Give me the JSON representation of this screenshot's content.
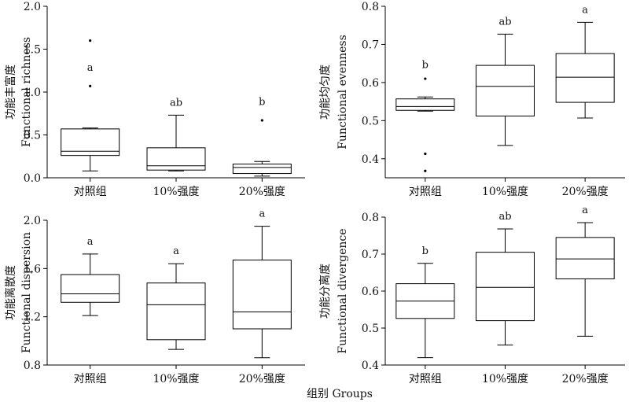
{
  "figure": {
    "xlabel": "组别 Groups"
  },
  "chart_data": [
    {
      "type": "box",
      "ylabel_cn": "功能丰富度",
      "ylabel_en": "Functional richness",
      "ylim": [
        0,
        2.0
      ],
      "yticks": [
        "0.0",
        "0.5",
        "1.0",
        "1.5",
        "2.0"
      ],
      "categories": [
        "对照组",
        "10%强度",
        "20%强度"
      ],
      "boxes": [
        {
          "min": 0.08,
          "q1": 0.26,
          "median": 0.31,
          "q3": 0.57,
          "max": 0.58,
          "outliers": [
            1.07,
            1.6
          ],
          "sig": "a"
        },
        {
          "min": 0.08,
          "q1": 0.09,
          "median": 0.14,
          "q3": 0.35,
          "max": 0.73,
          "outliers": [],
          "sig": "ab"
        },
        {
          "min": 0.02,
          "q1": 0.05,
          "median": 0.12,
          "q3": 0.16,
          "max": 0.19,
          "outliers": [
            0.67
          ],
          "sig": "b"
        }
      ]
    },
    {
      "type": "box",
      "ylabel_cn": "功能均匀度",
      "ylabel_en": "Functional evenness",
      "ylim": [
        0.35,
        0.8
      ],
      "yticks": [
        "0.4",
        "0.5",
        "0.6",
        "0.7",
        "0.8"
      ],
      "categories": [
        "对照组",
        "10%强度",
        "20%强度"
      ],
      "boxes": [
        {
          "min": 0.525,
          "q1": 0.527,
          "median": 0.537,
          "q3": 0.557,
          "max": 0.562,
          "outliers": [
            0.61,
            0.413,
            0.368
          ],
          "sig": "b"
        },
        {
          "min": 0.435,
          "q1": 0.512,
          "median": 0.59,
          "q3": 0.645,
          "max": 0.727,
          "outliers": [],
          "sig": "ab"
        },
        {
          "min": 0.507,
          "q1": 0.548,
          "median": 0.614,
          "q3": 0.676,
          "max": 0.758,
          "outliers": [],
          "sig": "a"
        }
      ]
    },
    {
      "type": "box",
      "ylabel_cn": "功能离散度",
      "ylabel_en": "Functional dispersion",
      "ylim": [
        0.8,
        2.0
      ],
      "yticks": [
        "0.8",
        "1.2",
        "1.6",
        "2.0"
      ],
      "categories": [
        "对照组",
        "10%强度",
        "20%强度"
      ],
      "boxes": [
        {
          "min": 1.21,
          "q1": 1.32,
          "median": 1.39,
          "q3": 1.55,
          "max": 1.72,
          "outliers": [],
          "sig": "a"
        },
        {
          "min": 0.93,
          "q1": 1.01,
          "median": 1.3,
          "q3": 1.48,
          "max": 1.64,
          "outliers": [],
          "sig": "a"
        },
        {
          "min": 0.86,
          "q1": 1.1,
          "median": 1.24,
          "q3": 1.67,
          "max": 1.95,
          "outliers": [],
          "sig": "a"
        }
      ]
    },
    {
      "type": "box",
      "ylabel_cn": "功能分离度",
      "ylabel_en": "Functional divergence",
      "ylim": [
        0.4,
        0.8
      ],
      "yticks": [
        "0.4",
        "0.5",
        "0.6",
        "0.7",
        "0.8"
      ],
      "categories": [
        "对照组",
        "10%强度",
        "20%强度"
      ],
      "boxes": [
        {
          "min": 0.42,
          "q1": 0.526,
          "median": 0.573,
          "q3": 0.62,
          "max": 0.675,
          "outliers": [],
          "sig": "b"
        },
        {
          "min": 0.454,
          "q1": 0.52,
          "median": 0.61,
          "q3": 0.705,
          "max": 0.768,
          "outliers": [],
          "sig": "ab"
        },
        {
          "min": 0.478,
          "q1": 0.633,
          "median": 0.687,
          "q3": 0.745,
          "max": 0.785,
          "outliers": [],
          "sig": "a"
        }
      ]
    }
  ]
}
